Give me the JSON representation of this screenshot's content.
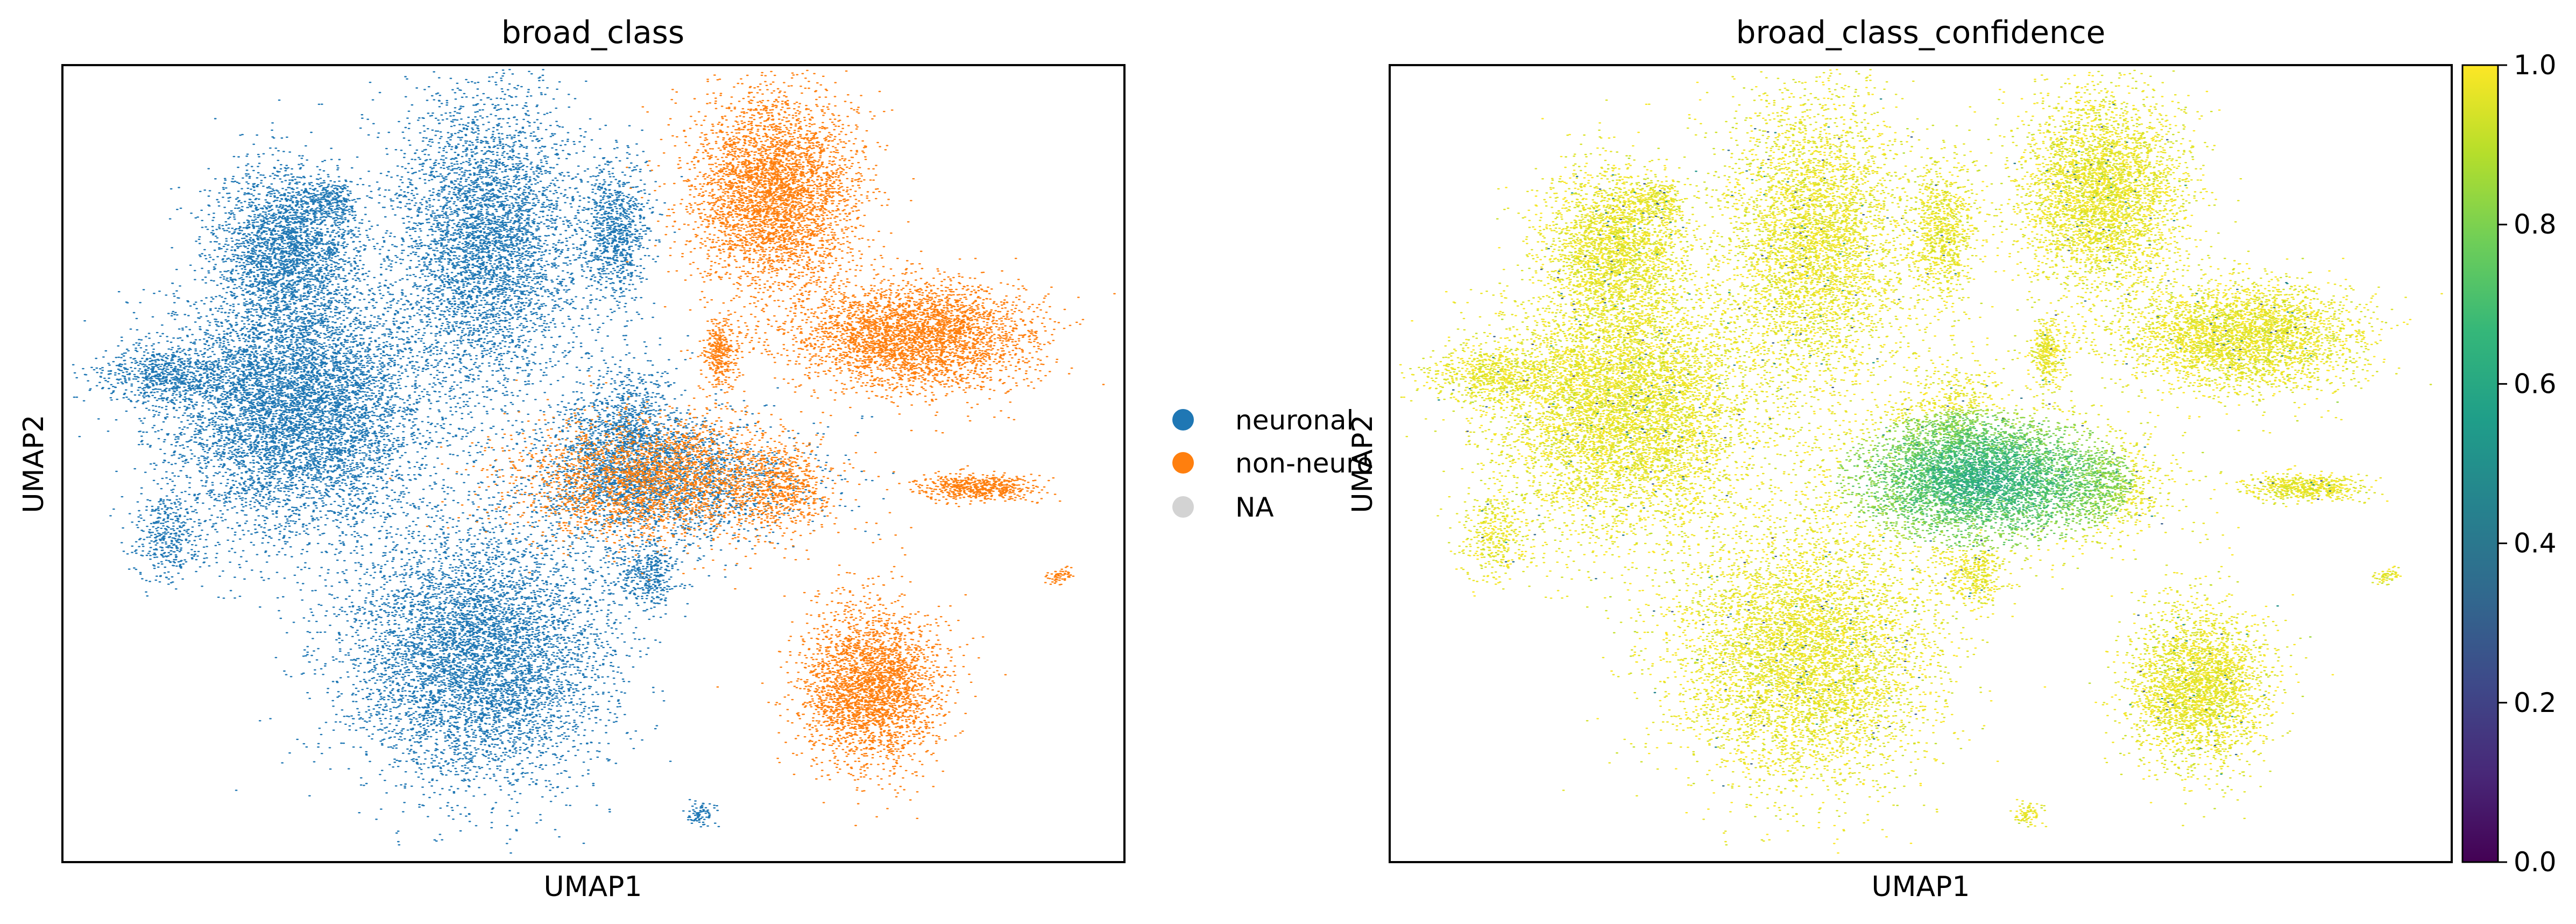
{
  "colors": {
    "neuronal": "#1f77b4",
    "non_neuronal": "#ff7f0e",
    "na": "#d3d3d3",
    "frame": "#000000",
    "background": "#ffffff",
    "viridis": [
      "#440154",
      "#482878",
      "#3e4989",
      "#31688e",
      "#26828e",
      "#1f9e89",
      "#35b779",
      "#6ece58",
      "#b5de2b",
      "#fde725"
    ]
  },
  "chart_data": [
    {
      "type": "scatter",
      "title": "broad_class",
      "xlabel": "UMAP1",
      "ylabel": "UMAP2",
      "grid": false,
      "xticks": false,
      "yticks": false,
      "legend": {
        "placement": "right-outside",
        "entries": [
          {
            "label": "neuronal",
            "color": "#1f77b4"
          },
          {
            "label": "non-neuro",
            "color": "#ff7f0e"
          },
          {
            "label": "NA",
            "color": "#d3d3d3"
          }
        ]
      },
      "x_range": [
        0,
        1
      ],
      "y_range": [
        0,
        1
      ],
      "clusters": [
        {
          "label": "neuronal",
          "cx": 0.22,
          "cy": 0.57,
          "rx": 0.11,
          "ry": 0.14,
          "n": 7000
        },
        {
          "label": "neuronal",
          "cx": 0.39,
          "cy": 0.26,
          "rx": 0.11,
          "ry": 0.15,
          "n": 6000
        },
        {
          "label": "neuronal",
          "cx": 0.21,
          "cy": 0.77,
          "rx": 0.06,
          "ry": 0.09,
          "n": 2500
        },
        {
          "label": "neuronal",
          "cx": 0.4,
          "cy": 0.78,
          "rx": 0.08,
          "ry": 0.17,
          "n": 4500
        },
        {
          "label": "neuronal",
          "cx": 0.52,
          "cy": 0.79,
          "rx": 0.03,
          "ry": 0.08,
          "n": 900
        },
        {
          "label": "neuronal",
          "cx": 0.1,
          "cy": 0.61,
          "rx": 0.06,
          "ry": 0.03,
          "n": 700
        },
        {
          "label": "neuronal",
          "cx": 0.1,
          "cy": 0.41,
          "rx": 0.03,
          "ry": 0.05,
          "n": 400
        },
        {
          "label": "neuronal",
          "cx": 0.25,
          "cy": 0.83,
          "rx": 0.025,
          "ry": 0.025,
          "n": 250
        },
        {
          "label": "neuronal",
          "cx": 0.55,
          "cy": 0.36,
          "rx": 0.03,
          "ry": 0.04,
          "n": 400
        },
        {
          "label": "neuronal",
          "cx": 0.53,
          "cy": 0.53,
          "rx": 0.05,
          "ry": 0.09,
          "n": 1200
        },
        {
          "label": "neuronal",
          "cx": 0.6,
          "cy": 0.06,
          "rx": 0.012,
          "ry": 0.015,
          "n": 80
        },
        {
          "label": "mixed",
          "cx": 0.56,
          "cy": 0.48,
          "rx": 0.12,
          "ry": 0.07,
          "n": 5000
        },
        {
          "label": "non-neuronal",
          "cx": 0.67,
          "cy": 0.84,
          "rx": 0.07,
          "ry": 0.11,
          "n": 4000
        },
        {
          "label": "non-neuronal",
          "cx": 0.8,
          "cy": 0.66,
          "rx": 0.1,
          "ry": 0.06,
          "n": 3500
        },
        {
          "label": "non-neuronal",
          "cx": 0.76,
          "cy": 0.22,
          "rx": 0.06,
          "ry": 0.09,
          "n": 3000
        },
        {
          "label": "non-neuronal",
          "cx": 0.62,
          "cy": 0.64,
          "rx": 0.015,
          "ry": 0.04,
          "n": 350
        },
        {
          "label": "non-neuronal",
          "cx": 0.68,
          "cy": 0.47,
          "rx": 0.04,
          "ry": 0.05,
          "n": 500
        },
        {
          "label": "non-neuronal",
          "cx": 0.86,
          "cy": 0.47,
          "rx": 0.05,
          "ry": 0.015,
          "n": 600
        },
        {
          "label": "non-neuronal",
          "cx": 0.94,
          "cy": 0.36,
          "rx": 0.012,
          "ry": 0.01,
          "n": 60
        }
      ]
    },
    {
      "type": "scatter",
      "title": "broad_class_confidence",
      "xlabel": "UMAP1",
      "ylabel": "UMAP2",
      "grid": false,
      "xticks": false,
      "yticks": false,
      "colorbar": {
        "colormap": "viridis",
        "range": [
          0.0,
          1.0
        ],
        "ticks": [
          "0.0",
          "0.2",
          "0.4",
          "0.6",
          "0.8",
          "1.0"
        ]
      },
      "x_range": [
        0,
        1
      ],
      "y_range": [
        0,
        1
      ],
      "low_confidence_region": {
        "cx": 0.56,
        "cy": 0.48,
        "value": 0.6
      },
      "high_confidence_value": 0.97
    }
  ]
}
